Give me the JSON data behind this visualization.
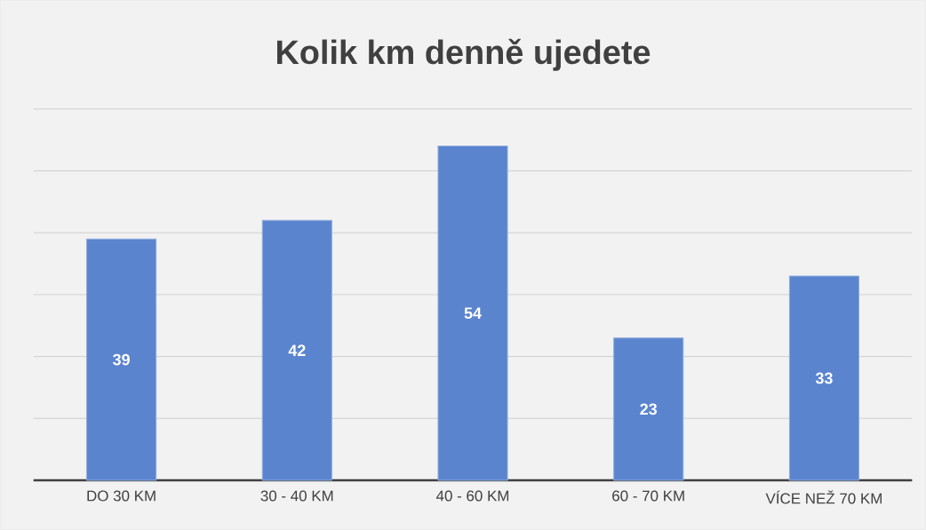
{
  "chart_data": {
    "type": "bar",
    "title": "Kolik km denně ujedete",
    "categories": [
      "DO 30 KM",
      "30 - 40 KM",
      "40 - 60 KM",
      "60 - 70 KM",
      "VÍCE NEŽ 70 KM"
    ],
    "values": [
      39,
      42,
      54,
      23,
      33
    ],
    "color": "#5b84cf",
    "data_labels": true,
    "ylim": [
      0,
      60
    ],
    "yticks": [
      {
        "value": 0,
        "label": null
      },
      {
        "value": 10,
        "label": null
      },
      {
        "value": 20,
        "label": null
      },
      {
        "value": 30,
        "label": null
      },
      {
        "value": 40,
        "label": null
      },
      {
        "value": 50,
        "label": null
      },
      {
        "value": 60,
        "label": null
      }
    ],
    "tick_labels": "x",
    "grid": "y"
  }
}
